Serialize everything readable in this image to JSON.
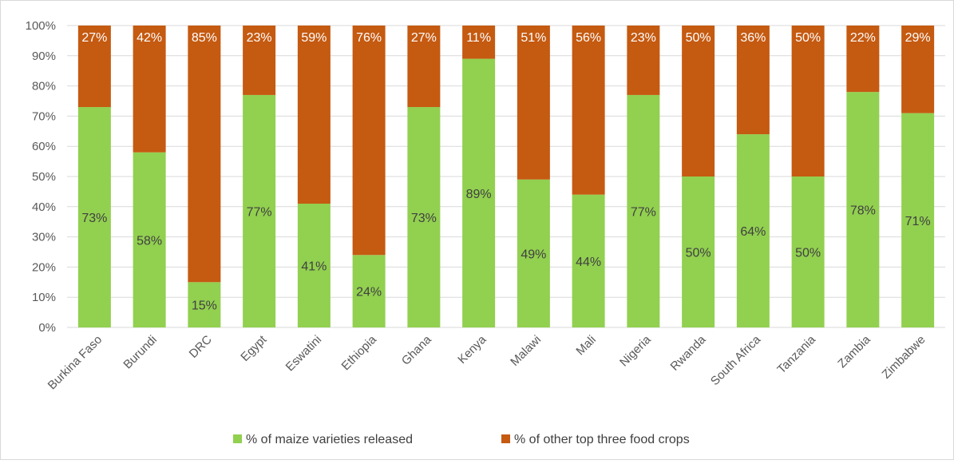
{
  "chart_data": {
    "type": "bar",
    "stacked": true,
    "title": "",
    "xlabel": "",
    "ylabel": "",
    "ylim": [
      0,
      100
    ],
    "y_ticks": [
      "0%",
      "10%",
      "20%",
      "30%",
      "40%",
      "50%",
      "60%",
      "70%",
      "80%",
      "90%",
      "100%"
    ],
    "grid": true,
    "legend_position": "bottom",
    "categories": [
      "Burkina Faso",
      "Burundi",
      "DRC",
      "Egypt",
      "Eswatini",
      "Ethiopia",
      "Ghana",
      "Kenya",
      "Malawi",
      "Mali",
      "Nigeria",
      "Rwanda",
      "South Africa",
      "Tanzania",
      "Zambia",
      "Zimbabwe"
    ],
    "series": [
      {
        "name": "% of maize varieties released",
        "color": "#92d050",
        "values": [
          73,
          58,
          15,
          77,
          41,
          24,
          73,
          89,
          49,
          44,
          77,
          50,
          64,
          50,
          78,
          71
        ],
        "labels": [
          "73%",
          "58%",
          "15%",
          "77%",
          "41%",
          "24%",
          "73%",
          "89%",
          "49%",
          "44%",
          "77%",
          "50%",
          "64%",
          "50%",
          "78%",
          "71%"
        ]
      },
      {
        "name": "% of other top three food crops",
        "color": "#c55a11",
        "values": [
          27,
          42,
          85,
          23,
          59,
          76,
          27,
          11,
          51,
          56,
          23,
          50,
          36,
          50,
          22,
          29
        ],
        "labels": [
          "27%",
          "42%",
          "85%",
          "23%",
          "59%",
          "76%",
          "27%",
          "11%",
          "51%",
          "56%",
          "23%",
          "50%",
          "36%",
          "50%",
          "22%",
          "29%"
        ]
      }
    ]
  }
}
